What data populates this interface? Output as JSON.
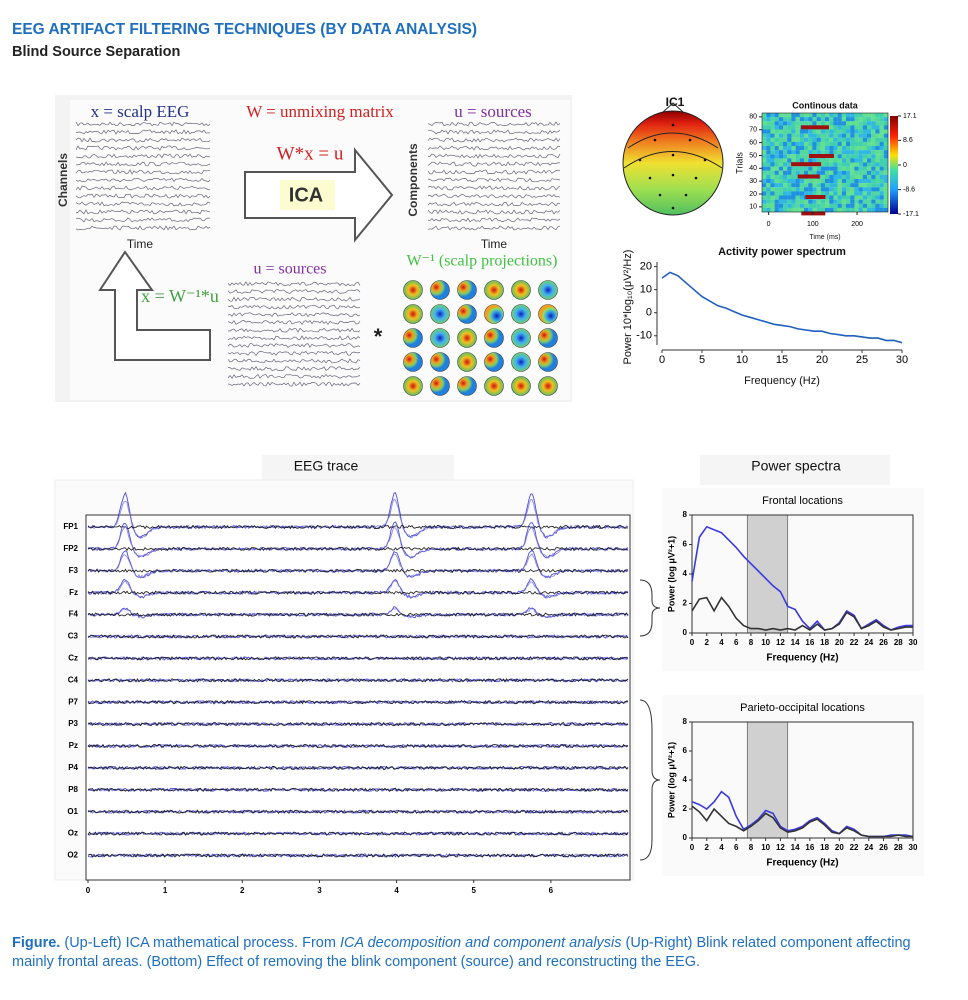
{
  "header": {
    "title": "EEG ARTIFACT FILTERING TECHNIQUES (BY DATA ANALYSIS)",
    "subtitle": "Blind Source Separation"
  },
  "ica_panel": {
    "scalp_label": "x = scalp EEG",
    "unmixing_label": "W = unmixing matrix",
    "sources_label": "u = sources",
    "equation": "W*x = u",
    "ica": "ICA",
    "channels": "Channels",
    "time_left": "Time",
    "components": "Components",
    "time_right": "Time",
    "sources_label_2": "u = sources",
    "projections": "W⁻¹ (scalp projections)",
    "inverse": "x = W⁻¹*u",
    "convolve": "*"
  },
  "component": {
    "title": "IC1",
    "heatmap": {
      "title": "Continous data",
      "ylabel": "Trials",
      "xlabel": "Time (ms)",
      "xlim": [
        -15,
        270
      ],
      "ylim": [
        6,
        83
      ],
      "xticks": [
        0,
        100,
        200
      ],
      "yticks": [
        80,
        70,
        60,
        50,
        40,
        30,
        20,
        10
      ],
      "clim": [
        -17.1,
        17.1
      ],
      "colorbar_ticks": [
        17.1,
        8.6,
        0,
        -8.6,
        -17.1
      ]
    },
    "spectrum": {
      "type": "line",
      "title": "Activity power spectrum",
      "xlabel": "Frequency (Hz)",
      "ylabel": "Power 10*log₁₀(μV²/Hz)",
      "xlim": [
        0,
        30
      ],
      "ylim": [
        -14,
        22
      ],
      "xticks": [
        0,
        5,
        10,
        15,
        20,
        25,
        30
      ],
      "yticks": [
        20,
        10,
        0,
        -10
      ],
      "x": [
        0,
        1,
        2,
        3,
        4,
        5,
        6,
        7,
        8,
        9,
        10,
        11,
        12,
        13,
        14,
        15,
        16,
        17,
        18,
        19,
        20,
        21,
        22,
        23,
        24,
        25,
        26,
        27,
        28,
        29,
        30
      ],
      "series": [
        {
          "color": "#1f5fbf",
          "values": [
            15,
            17.5,
            16,
            13,
            10,
            7,
            5,
            3,
            2,
            0.5,
            -1,
            -2,
            -3,
            -4,
            -5,
            -5.5,
            -6,
            -7,
            -7.5,
            -8,
            -8,
            -9,
            -9.5,
            -10,
            -10,
            -10.5,
            -11,
            -11,
            -12,
            -12,
            -13
          ]
        }
      ]
    }
  },
  "eeg": {
    "title": "EEG trace",
    "spectra_title": "Power spectra",
    "channels": [
      "FP1",
      "FP2",
      "F3",
      "Fz",
      "F4",
      "C3",
      "Cz",
      "C4",
      "P7",
      "P3",
      "Pz",
      "P4",
      "P8",
      "O1",
      "Oz",
      "O2"
    ],
    "xlim": [
      0,
      7
    ],
    "xticks": [
      0,
      1,
      2,
      3,
      4,
      5,
      6
    ]
  },
  "spectra": [
    {
      "type": "line",
      "title": "Frontal locations",
      "xlabel": "Frequency (Hz)",
      "ylabel": "Power (log μV²+1)",
      "xlim": [
        0,
        30
      ],
      "ylim": [
        0,
        8
      ],
      "xticks": [
        0,
        2,
        4,
        6,
        8,
        10,
        12,
        14,
        16,
        18,
        20,
        22,
        24,
        26,
        28,
        30
      ],
      "yticks": [
        0,
        2,
        4,
        6,
        8
      ],
      "highlight": [
        7.5,
        13
      ],
      "x": [
        0,
        1,
        2,
        3,
        4,
        5,
        6,
        7,
        8,
        9,
        10,
        11,
        12,
        13,
        14,
        15,
        16,
        17,
        18,
        19,
        20,
        21,
        22,
        23,
        24,
        25,
        26,
        27,
        28,
        29,
        30
      ],
      "series": [
        {
          "color": "#3a3adf",
          "values": [
            3.5,
            6.5,
            7.2,
            7,
            6.8,
            6.3,
            5.8,
            5.2,
            4.7,
            4.2,
            3.7,
            3.2,
            2.8,
            1.8,
            1.6,
            0.8,
            0.3,
            0.8,
            0.2,
            0.3,
            0.7,
            1.5,
            1.2,
            0.3,
            0.6,
            0.9,
            0.5,
            0.2,
            0.4,
            0.5,
            0.5
          ]
        },
        {
          "color": "#333333",
          "values": [
            1.5,
            2.3,
            2.4,
            1.5,
            2.4,
            1.8,
            1,
            0.5,
            0.3,
            0.3,
            0.2,
            0.3,
            0.2,
            0.3,
            0.2,
            0.5,
            0.2,
            0.6,
            0.2,
            0.3,
            0.6,
            1.4,
            1.1,
            0.3,
            0.5,
            0.8,
            0.4,
            0.2,
            0.3,
            0.4,
            0.4
          ]
        }
      ]
    },
    {
      "type": "line",
      "title": "Parieto-occipital locations",
      "xlabel": "Frequency (Hz)",
      "ylabel": "Power (log μV²+1)",
      "xlim": [
        0,
        30
      ],
      "ylim": [
        0,
        8
      ],
      "xticks": [
        0,
        2,
        4,
        6,
        8,
        10,
        12,
        14,
        16,
        18,
        20,
        22,
        24,
        26,
        28,
        30
      ],
      "yticks": [
        0,
        2,
        4,
        6,
        8
      ],
      "highlight": [
        7.5,
        13
      ],
      "x": [
        0,
        1,
        2,
        3,
        4,
        5,
        6,
        7,
        8,
        9,
        10,
        11,
        12,
        13,
        14,
        15,
        16,
        17,
        18,
        19,
        20,
        21,
        22,
        23,
        24,
        25,
        26,
        27,
        28,
        29,
        30
      ],
      "series": [
        {
          "color": "#3a3adf",
          "values": [
            2.5,
            2.3,
            2.0,
            2.5,
            3.2,
            2.8,
            1.5,
            0.6,
            0.9,
            1.3,
            1.9,
            1.7,
            0.8,
            0.5,
            0.6,
            0.8,
            1.2,
            1.4,
            1.0,
            0.5,
            0.3,
            0.8,
            0.6,
            0.2,
            0.1,
            0.1,
            0.1,
            0.2,
            0.2,
            0.2,
            0.1
          ]
        },
        {
          "color": "#333333",
          "values": [
            2.2,
            1.8,
            1.2,
            2.0,
            1.5,
            1.0,
            0.8,
            0.5,
            0.8,
            1.2,
            1.7,
            1.4,
            0.7,
            0.4,
            0.5,
            0.7,
            1.1,
            1.3,
            0.9,
            0.4,
            0.3,
            0.7,
            0.5,
            0.2,
            0.1,
            0.1,
            0.1,
            0.1,
            0.2,
            0.1,
            0.1
          ]
        }
      ]
    }
  ],
  "caption": {
    "label": "Figure.",
    "part1": " (Up-Left) ICA mathematical process. From ",
    "source": "ICA decomposition and component analysis",
    "part2": " (Up-Right) Blink related component affecting mainly frontal areas. (Bottom) Effect of removing the blink component (source) and reconstructing the EEG."
  }
}
